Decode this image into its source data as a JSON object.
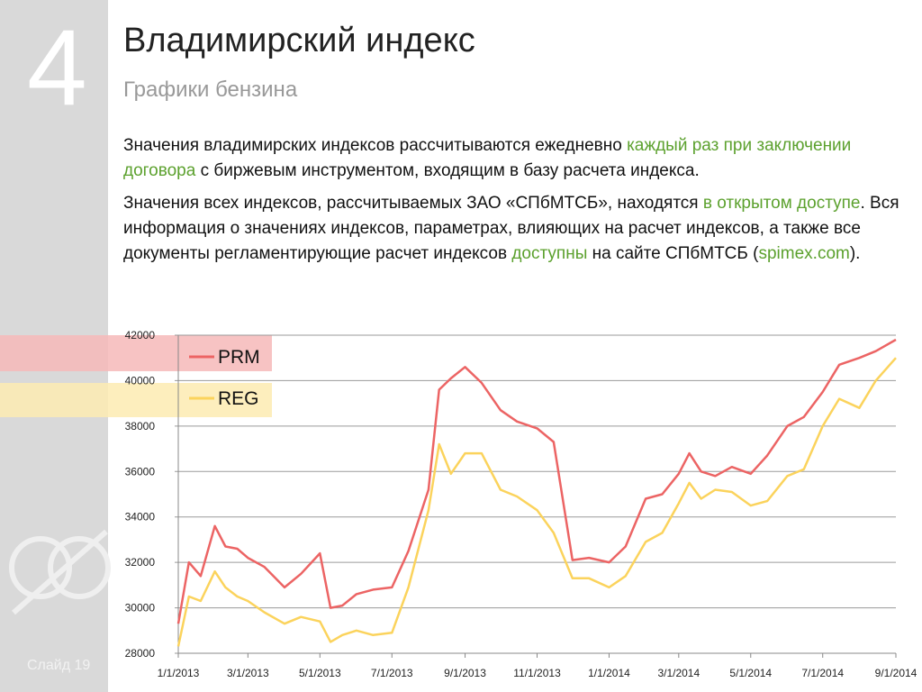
{
  "slide": {
    "number": "4",
    "title": "Владимирский индекс",
    "subtitle": "Графики бензина",
    "footer": "Слайд 19",
    "paragraphs": [
      [
        {
          "text": "Значения владимирских индексов рассчитываются ежедневно ",
          "highlight": false
        },
        {
          "text": "каждый раз при заключении договора",
          "highlight": true
        },
        {
          "text": " с биржевым инструментом, входящим в базу расчета индекса.",
          "highlight": false
        }
      ],
      [
        {
          "text": "Значения всех индексов, рассчитываемых ЗАО «СПбМТСБ», находятся ",
          "highlight": false
        },
        {
          "text": "в открытом доступе",
          "highlight": true
        },
        {
          "text": ". Вся информация о значениях индексов, параметрах, влияющих на расчет индексов, а также все документы регламентирующие расчет индексов ",
          "highlight": false
        },
        {
          "text": "доступны",
          "highlight": true
        },
        {
          "text": " на сайте СПбМТСБ (",
          "highlight": false
        },
        {
          "text": "spimex.com",
          "highlight": true
        },
        {
          "text": ").",
          "highlight": false
        }
      ]
    ]
  },
  "chart_data": {
    "type": "line",
    "x": [
      "1/1/2013",
      "1/10/2013",
      "1/20/2013",
      "2/1/2013",
      "2/10/2013",
      "2/20/2013",
      "3/1/2013",
      "3/15/2013",
      "4/1/2013",
      "4/15/2013",
      "5/1/2013",
      "5/10/2013",
      "5/20/2013",
      "6/1/2013",
      "6/15/2013",
      "7/1/2013",
      "7/15/2013",
      "8/1/2013",
      "8/10/2013",
      "8/20/2013",
      "9/1/2013",
      "9/15/2013",
      "10/1/2013",
      "10/15/2013",
      "11/1/2013",
      "11/15/2013",
      "12/1/2013",
      "12/15/2013",
      "1/1/2014",
      "1/15/2014",
      "2/1/2014",
      "2/15/2014",
      "3/1/2014",
      "3/10/2014",
      "3/20/2014",
      "4/1/2014",
      "4/15/2014",
      "5/1/2014",
      "5/15/2014",
      "6/1/2014",
      "6/15/2014",
      "7/1/2014",
      "7/15/2014",
      "8/1/2014",
      "8/15/2014",
      "9/1/2014"
    ],
    "series": [
      {
        "name": "PRM",
        "color": "#ec6464",
        "values": [
          29300,
          32000,
          31400,
          33600,
          32700,
          32600,
          32200,
          31800,
          30900,
          31500,
          32400,
          30000,
          30100,
          30600,
          30800,
          30900,
          32500,
          35200,
          39600,
          40100,
          40600,
          39900,
          38700,
          38200,
          37900,
          37300,
          32100,
          32200,
          32000,
          32700,
          34800,
          35000,
          35900,
          36800,
          36000,
          35800,
          36200,
          35900,
          36700,
          38000,
          38400,
          39500,
          40700,
          41000,
          41300,
          41800
        ]
      },
      {
        "name": "REG",
        "color": "#fbd35c",
        "values": [
          28300,
          30500,
          30300,
          31600,
          30900,
          30500,
          30300,
          29800,
          29300,
          29600,
          29400,
          28500,
          28800,
          29000,
          28800,
          28900,
          30900,
          34300,
          37200,
          35900,
          36800,
          36800,
          35200,
          34900,
          34300,
          33300,
          31300,
          31300,
          30900,
          31400,
          32900,
          33300,
          34600,
          35500,
          34800,
          35200,
          35100,
          34500,
          34700,
          35800,
          36100,
          38000,
          39200,
          38800,
          40000,
          41000
        ]
      }
    ],
    "xlim": [
      "1/1/2013",
      "9/1/2014"
    ],
    "xticks": [
      "1/1/2013",
      "3/1/2013",
      "5/1/2013",
      "7/1/2013",
      "9/1/2013",
      "11/1/2013",
      "1/1/2014",
      "3/1/2014",
      "5/1/2014",
      "7/1/2014",
      "9/1/2014"
    ],
    "ylim": [
      28000,
      42000
    ],
    "yticks": [
      28000,
      30000,
      32000,
      34000,
      36000,
      38000,
      40000,
      42000
    ],
    "grid": true
  }
}
